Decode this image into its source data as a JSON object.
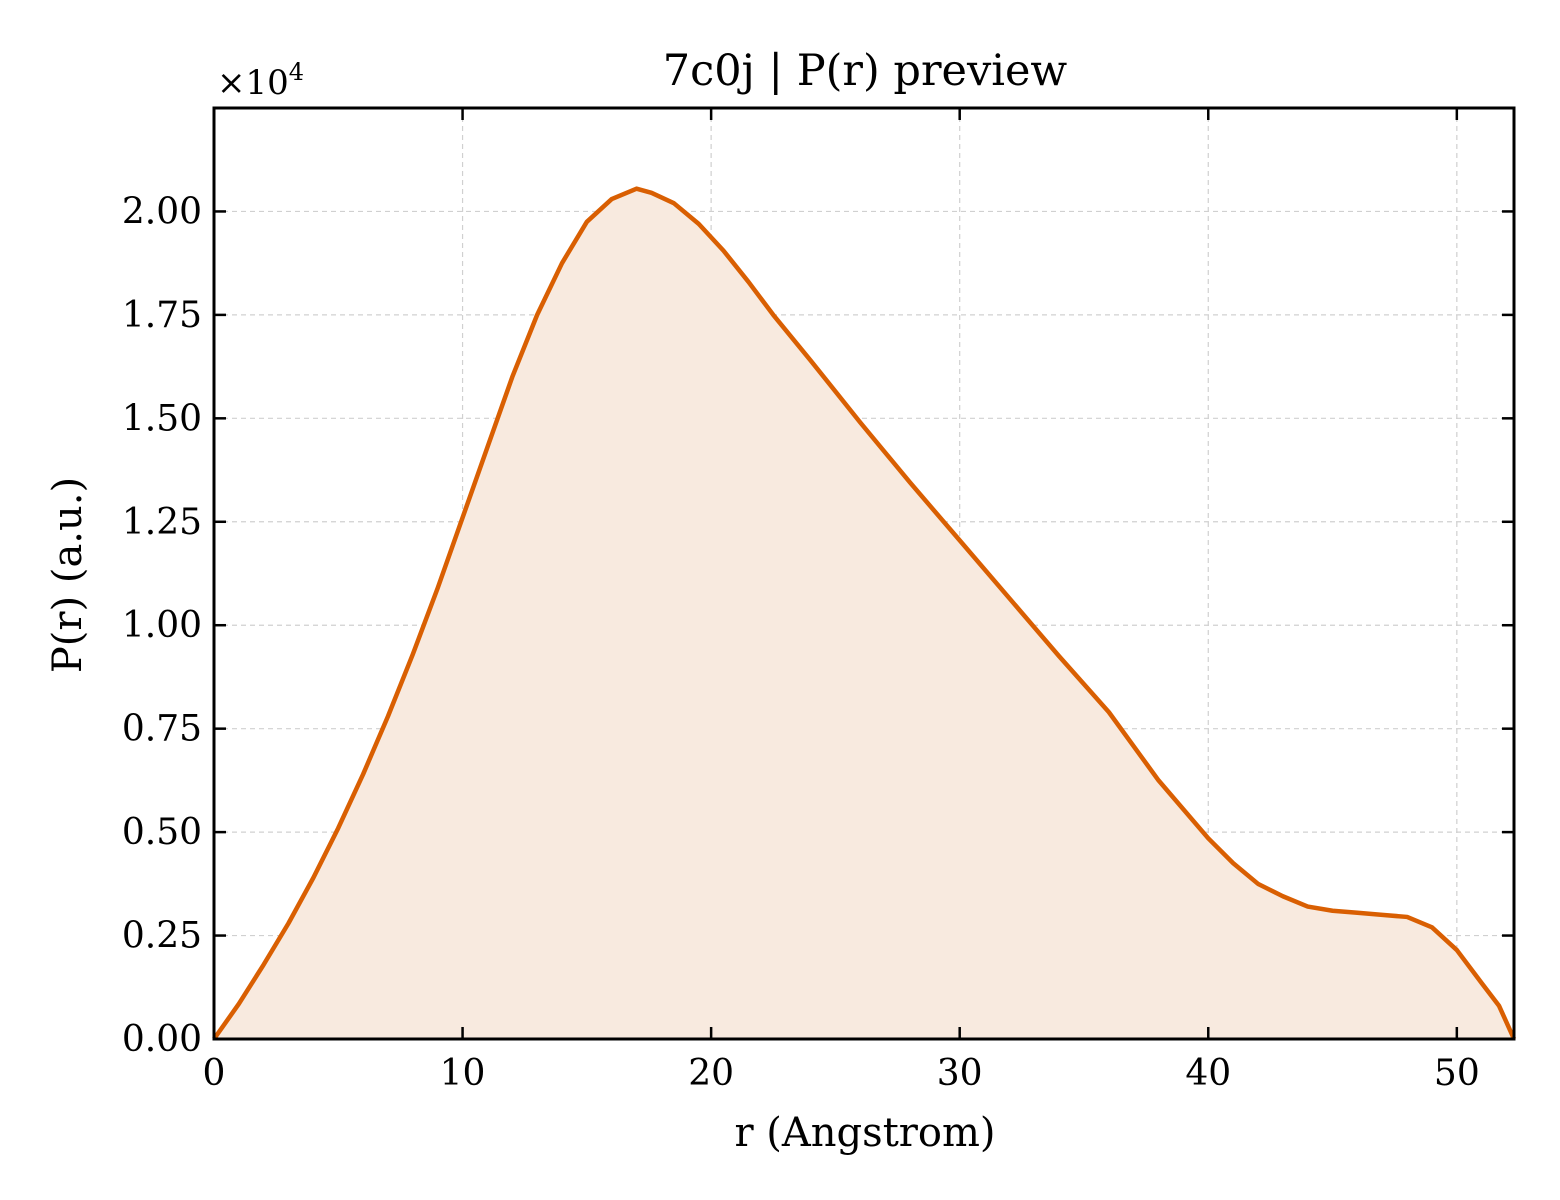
{
  "chart_data": {
    "type": "area",
    "title": "7c0j | P(r) preview",
    "xlabel": "r (Angstrom)",
    "ylabel": "P(r) (a.u.)",
    "y_multiplier_label": "×10",
    "y_multiplier_exponent": "4",
    "xlim": [
      0,
      52.3
    ],
    "ylim": [
      0,
      2.25
    ],
    "x_ticks": [
      0,
      10,
      20,
      30,
      40,
      50
    ],
    "x_tick_labels": [
      "0",
      "10",
      "20",
      "30",
      "40",
      "50"
    ],
    "y_ticks": [
      0,
      0.25,
      0.5,
      0.75,
      1.0,
      1.25,
      1.5,
      1.75,
      2.0
    ],
    "y_tick_labels": [
      "0.00",
      "0.25",
      "0.50",
      "0.75",
      "1.00",
      "1.25",
      "1.50",
      "1.75",
      "2.00"
    ],
    "grid": true,
    "line_color": "#d95f02",
    "fill_color": "#f8eadf",
    "series": [
      {
        "x": [
          0,
          1,
          2,
          3,
          4,
          5,
          6,
          7,
          8,
          9,
          10,
          11,
          12,
          13,
          14,
          15,
          16,
          17,
          17.6,
          18.5,
          19.5,
          20.5,
          21.5,
          22.5,
          24,
          26,
          28,
          30,
          32,
          34,
          36,
          38,
          40,
          41,
          42,
          43,
          44,
          45,
          46,
          47,
          48,
          49,
          50,
          51,
          51.7,
          52.3
        ],
        "y": [
          0,
          0.085,
          0.18,
          0.28,
          0.39,
          0.51,
          0.64,
          0.78,
          0.93,
          1.09,
          1.26,
          1.43,
          1.6,
          1.75,
          1.875,
          1.975,
          2.03,
          2.055,
          2.045,
          2.02,
          1.97,
          1.905,
          1.83,
          1.75,
          1.64,
          1.49,
          1.345,
          1.205,
          1.065,
          0.925,
          0.79,
          0.625,
          0.485,
          0.425,
          0.375,
          0.345,
          0.32,
          0.31,
          0.305,
          0.3,
          0.295,
          0.27,
          0.215,
          0.135,
          0.08,
          0.0
        ]
      }
    ]
  }
}
